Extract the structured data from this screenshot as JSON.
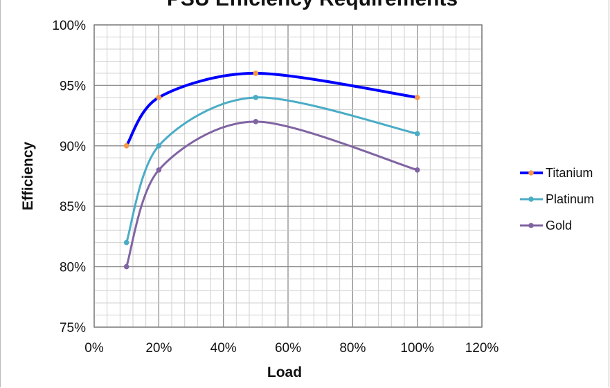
{
  "chart_data": {
    "type": "line",
    "title": "PSU Efficiency Requirements",
    "xlabel": "Load",
    "ylabel": "Efficiency",
    "x": [
      10,
      20,
      50,
      100
    ],
    "xlim": [
      0,
      120
    ],
    "ylim": [
      75,
      100
    ],
    "x_ticks": [
      "0%",
      "20%",
      "40%",
      "60%",
      "80%",
      "100%",
      "120%"
    ],
    "y_ticks": [
      "75%",
      "80%",
      "85%",
      "90%",
      "95%",
      "100%"
    ],
    "grid": true,
    "legend_position": "right",
    "series": [
      {
        "name": "Titanium",
        "values": [
          90,
          94,
          96,
          94
        ],
        "line_color": "#0000ff",
        "marker_color": "#f79646"
      },
      {
        "name": "Platinum",
        "values": [
          82,
          90,
          94,
          91
        ],
        "line_color": "#4bacc6",
        "marker_color": "#4bacc6"
      },
      {
        "name": "Gold",
        "values": [
          80,
          88,
          92,
          88
        ],
        "line_color": "#8064a2",
        "marker_color": "#8064a2"
      }
    ]
  }
}
